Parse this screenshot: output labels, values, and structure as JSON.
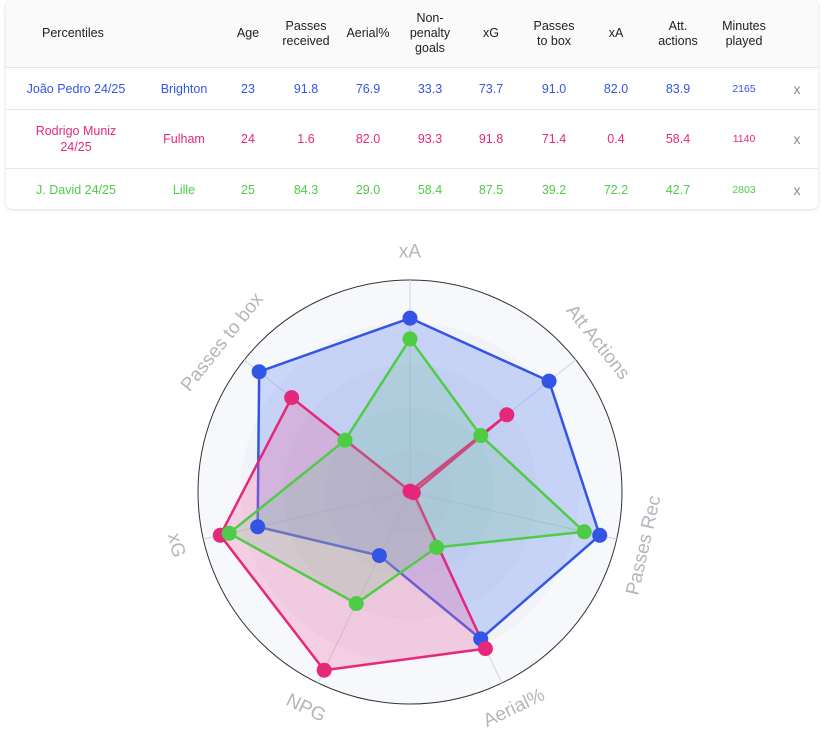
{
  "table": {
    "headers": [
      "Percentiles",
      "",
      "Age",
      "Passes\nreceived",
      "Aerial%",
      "Non-\npenalty\ngoals",
      "xG",
      "Passes\nto box",
      "xA",
      "Att.\nactions",
      "Minutes\nplayed",
      ""
    ],
    "rows": [
      {
        "player": "João Pedro 24/25",
        "team": "Brighton",
        "age": "23",
        "passes_received": "91.8",
        "aerial": "76.9",
        "npg": "33.3",
        "xg": "73.7",
        "passes_to_box": "91.0",
        "xa": "82.0",
        "att_actions": "83.9",
        "minutes": "2165",
        "remove": "x",
        "color": "#3355e6"
      },
      {
        "player": "Rodrigo Muniz\n24/25",
        "team": "Fulham",
        "age": "24",
        "passes_received": "1.6",
        "aerial": "82.0",
        "npg": "93.3",
        "xg": "91.8",
        "passes_to_box": "71.4",
        "xa": "0.4",
        "att_actions": "58.4",
        "minutes": "1140",
        "remove": "x",
        "color": "#e6287a"
      },
      {
        "player": "J. David 24/25",
        "team": "Lille",
        "age": "25",
        "passes_received": "84.3",
        "aerial": "29.0",
        "npg": "58.4",
        "xg": "87.5",
        "passes_to_box": "39.2",
        "xa": "72.2",
        "att_actions": "42.7",
        "minutes": "2803",
        "remove": "x",
        "color": "#4fcc46"
      }
    ]
  },
  "chart_data": {
    "type": "radar",
    "axes": [
      "xA",
      "Att Actions",
      "Passes Rec",
      "Aerial%",
      "NPG",
      "xG",
      "Passes to box"
    ],
    "range": [
      0,
      100
    ],
    "series": [
      {
        "name": "João Pedro 24/25",
        "color": "#3355e6",
        "fill": "rgba(100,140,245,0.30)",
        "values": [
          82.0,
          83.9,
          91.8,
          76.9,
          33.3,
          73.7,
          91.0
        ]
      },
      {
        "name": "Rodrigo Muniz 24/25",
        "color": "#e6287a",
        "fill": "rgba(240,110,170,0.30)",
        "values": [
          0.4,
          58.4,
          1.6,
          82.0,
          93.3,
          91.8,
          71.4
        ]
      },
      {
        "name": "J. David 24/25",
        "color": "#4fcc46",
        "fill": "rgba(110,200,140,0.22)",
        "values": [
          72.2,
          42.7,
          84.3,
          29.0,
          58.4,
          87.5,
          39.2
        ]
      }
    ]
  }
}
